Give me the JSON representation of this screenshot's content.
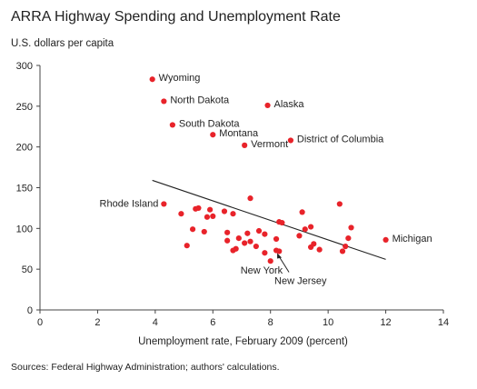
{
  "chart_data": {
    "type": "scatter",
    "title": "ARRA Highway Spending and Unemployment Rate",
    "ylabel": "U.S. dollars per capita",
    "xlabel": "Unemployment rate, February 2009 (percent)",
    "source": "Sources: Federal Highway Administration; authors' calculations.",
    "xlim": [
      0,
      14
    ],
    "ylim": [
      0,
      300
    ],
    "xticks": [
      0,
      2,
      4,
      6,
      8,
      10,
      12,
      14
    ],
    "yticks": [
      0,
      50,
      100,
      150,
      200,
      250,
      300
    ],
    "grid": false,
    "point_color": "#e8232a",
    "trendline": {
      "x": [
        3.9,
        12.0
      ],
      "y": [
        159,
        62
      ]
    },
    "points": [
      {
        "x": 3.9,
        "y": 283,
        "label": "Wyoming"
      },
      {
        "x": 4.3,
        "y": 256,
        "label": "North Dakota"
      },
      {
        "x": 7.9,
        "y": 251,
        "label": "Alaska"
      },
      {
        "x": 4.6,
        "y": 227,
        "label": "South Dakota"
      },
      {
        "x": 6.0,
        "y": 215,
        "label": "Montana"
      },
      {
        "x": 8.7,
        "y": 208,
        "label": "District of Columbia"
      },
      {
        "x": 7.1,
        "y": 202,
        "label": "Vermont"
      },
      {
        "x": 4.3,
        "y": 130,
        "label": "Rhode Island"
      },
      {
        "x": 12.0,
        "y": 86,
        "label": "Michigan"
      },
      {
        "x": 8.0,
        "y": 60,
        "label": "New York"
      },
      {
        "x": 8.2,
        "y": 73,
        "label": "New Jersey"
      },
      {
        "x": 7.3,
        "y": 137
      },
      {
        "x": 10.4,
        "y": 130
      },
      {
        "x": 9.1,
        "y": 120
      },
      {
        "x": 4.9,
        "y": 118
      },
      {
        "x": 5.4,
        "y": 124
      },
      {
        "x": 5.5,
        "y": 125
      },
      {
        "x": 5.9,
        "y": 123
      },
      {
        "x": 6.4,
        "y": 121
      },
      {
        "x": 6.7,
        "y": 118
      },
      {
        "x": 5.8,
        "y": 114
      },
      {
        "x": 6.0,
        "y": 115
      },
      {
        "x": 8.3,
        "y": 108
      },
      {
        "x": 8.4,
        "y": 107
      },
      {
        "x": 9.4,
        "y": 102
      },
      {
        "x": 10.8,
        "y": 101
      },
      {
        "x": 9.2,
        "y": 99
      },
      {
        "x": 5.3,
        "y": 99
      },
      {
        "x": 5.7,
        "y": 96
      },
      {
        "x": 6.5,
        "y": 95
      },
      {
        "x": 7.6,
        "y": 97
      },
      {
        "x": 7.2,
        "y": 94
      },
      {
        "x": 7.8,
        "y": 93
      },
      {
        "x": 9.0,
        "y": 91
      },
      {
        "x": 6.9,
        "y": 88
      },
      {
        "x": 8.2,
        "y": 87
      },
      {
        "x": 10.7,
        "y": 88
      },
      {
        "x": 6.5,
        "y": 85
      },
      {
        "x": 7.3,
        "y": 84
      },
      {
        "x": 7.1,
        "y": 82
      },
      {
        "x": 9.5,
        "y": 81
      },
      {
        "x": 5.1,
        "y": 79
      },
      {
        "x": 7.5,
        "y": 78
      },
      {
        "x": 10.6,
        "y": 78
      },
      {
        "x": 6.8,
        "y": 75
      },
      {
        "x": 6.7,
        "y": 73
      },
      {
        "x": 9.7,
        "y": 74
      },
      {
        "x": 10.5,
        "y": 72
      },
      {
        "x": 8.3,
        "y": 72
      },
      {
        "x": 7.8,
        "y": 70
      },
      {
        "x": 9.4,
        "y": 77
      }
    ],
    "label_layout": {
      "Wyoming": "right",
      "North Dakota": "right",
      "Alaska": "right",
      "South Dakota": "right",
      "Montana": "right",
      "District of Columbia": "right",
      "Vermont": "right",
      "Rhode Island": "left",
      "Michigan": "right",
      "New York": "below-arrow",
      "New Jersey": "below-arrow"
    }
  }
}
